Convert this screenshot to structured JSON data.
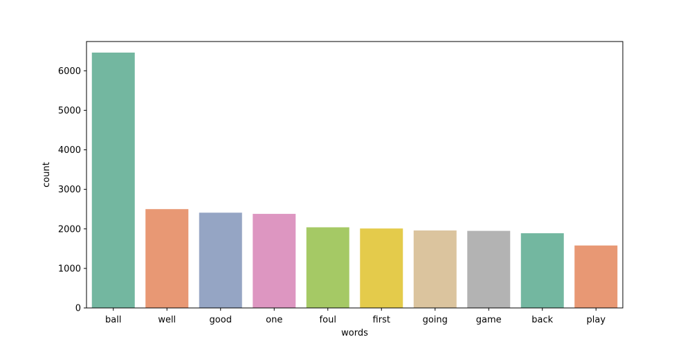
{
  "chart_data": {
    "type": "bar",
    "title": "",
    "xlabel": "words",
    "ylabel": "count",
    "categories": [
      "ball",
      "well",
      "good",
      "one",
      "foul",
      "first",
      "going",
      "game",
      "back",
      "play"
    ],
    "values": [
      6460,
      2500,
      2410,
      2380,
      2040,
      2010,
      1960,
      1950,
      1890,
      1580
    ],
    "colors": [
      "#73b7a0",
      "#e89874",
      "#95a5c4",
      "#dd96c1",
      "#a5c965",
      "#e4cb4b",
      "#dbc49e",
      "#b3b3b3",
      "#73b7a0",
      "#e89874"
    ],
    "ylim": [
      0,
      6740
    ],
    "yticks": [
      0,
      1000,
      2000,
      3000,
      4000,
      5000,
      6000
    ],
    "grid": false
  }
}
